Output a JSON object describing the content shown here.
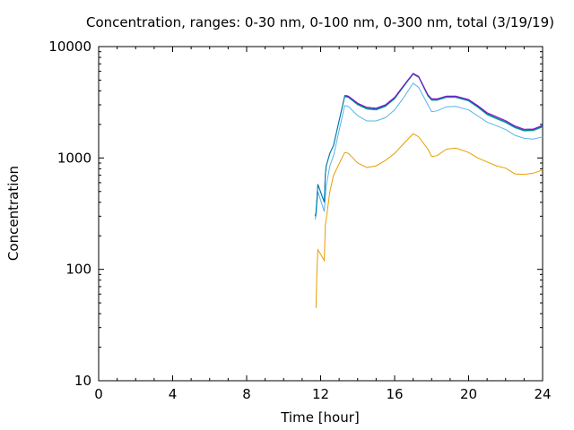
{
  "chart_data": {
    "type": "line",
    "title": "Concentration, ranges: 0-30 nm, 0-100 nm, 0-300 nm, total (3/19/19)",
    "xlabel": "Time [hour]",
    "ylabel": "Concentration",
    "xlim": [
      0,
      24
    ],
    "ylim": [
      10,
      10000
    ],
    "y_scale": "log",
    "grid": false,
    "legend": "none",
    "x_ticks": [
      0,
      4,
      8,
      12,
      16,
      20,
      24
    ],
    "x_tick_labels": [
      "0",
      "4",
      "8",
      "12",
      "16",
      "20",
      "24"
    ],
    "y_ticks": [
      10,
      100,
      1000,
      10000
    ],
    "y_tick_labels": [
      "10",
      "100",
      "1000",
      "10000"
    ],
    "series": [
      {
        "color": "#E69F00",
        "x": [
          11.75,
          11.8,
          11.85,
          12.2,
          12.25,
          12.3,
          12.5,
          12.7,
          13.3,
          13.5,
          14.0,
          14.5,
          15.0,
          15.5,
          16.0,
          16.5,
          17.0,
          17.3,
          17.8,
          18.0,
          18.3,
          18.8,
          19.3,
          20.0,
          20.5,
          21.0,
          21.5,
          22.0,
          22.5,
          23.0,
          23.5,
          24.0
        ],
        "y": [
          45,
          100,
          150,
          120,
          250,
          280,
          500,
          700,
          1120,
          1100,
          900,
          820,
          850,
          950,
          1100,
          1350,
          1650,
          1550,
          1200,
          1030,
          1050,
          1200,
          1230,
          1120,
          1000,
          920,
          850,
          810,
          720,
          710,
          730,
          780
        ]
      },
      {
        "color": "#56B4E9",
        "x": [
          11.7,
          11.75,
          11.8,
          11.85,
          12.2,
          12.25,
          12.3,
          12.5,
          12.7,
          13.3,
          13.5,
          14.0,
          14.5,
          15.0,
          15.5,
          16.0,
          16.5,
          17.0,
          17.3,
          17.8,
          18.0,
          18.3,
          18.8,
          19.3,
          20.0,
          20.5,
          21.0,
          21.5,
          22.0,
          22.5,
          23.0,
          23.5,
          24.0
        ],
        "y": [
          280,
          300,
          400,
          500,
          330,
          450,
          560,
          850,
          1050,
          2950,
          2900,
          2400,
          2150,
          2150,
          2300,
          2700,
          3500,
          4700,
          4300,
          3000,
          2600,
          2650,
          2880,
          2900,
          2700,
          2380,
          2100,
          1950,
          1800,
          1600,
          1500,
          1480,
          1550
        ]
      },
      {
        "color": "#009E73",
        "x": [
          11.7,
          11.75,
          11.8,
          11.85,
          12.2,
          12.25,
          12.3,
          12.5,
          12.7,
          13.3,
          13.5,
          14.0,
          14.5,
          15.0,
          15.5,
          16.0,
          16.5,
          17.0,
          17.3,
          17.8,
          18.0,
          18.3,
          18.8,
          19.3,
          20.0,
          20.5,
          21.0,
          21.5,
          22.0,
          22.5,
          23.0,
          23.5,
          24.0
        ],
        "y": [
          300,
          320,
          430,
          580,
          400,
          700,
          850,
          1100,
          1300,
          3550,
          3500,
          3000,
          2750,
          2700,
          2900,
          3400,
          4400,
          5650,
          5300,
          3600,
          3300,
          3300,
          3500,
          3500,
          3250,
          2850,
          2450,
          2250,
          2080,
          1870,
          1750,
          1760,
          1900
        ]
      },
      {
        "color": "#0072B2",
        "x": [
          11.7,
          11.75,
          11.8,
          11.85,
          12.2,
          12.25,
          12.3,
          12.5,
          12.7,
          13.3,
          13.5,
          14.0,
          14.5,
          15.0,
          15.5,
          16.0,
          16.5,
          17.0,
          17.3,
          17.8,
          18.0,
          18.3,
          18.8,
          19.3,
          20.0,
          20.5,
          21.0,
          21.5,
          22.0,
          22.5,
          23.0,
          23.5,
          24.0
        ],
        "y": [
          300,
          320,
          430,
          580,
          400,
          700,
          850,
          1100,
          1300,
          3600,
          3550,
          3050,
          2800,
          2750,
          2950,
          3450,
          4450,
          5700,
          5350,
          3650,
          3350,
          3350,
          3550,
          3550,
          3300,
          2900,
          2500,
          2300,
          2120,
          1900,
          1780,
          1790,
          1930
        ]
      },
      {
        "color": "#9400D3",
        "x": [
          13.3,
          13.5,
          14.0,
          14.5,
          15.0,
          15.5,
          16.0,
          16.5,
          17.0,
          17.3,
          17.8,
          18.0,
          18.3,
          18.8,
          19.3,
          20.0,
          20.5,
          21.0,
          21.5,
          22.0,
          22.5,
          23.0,
          23.5,
          24.0
        ],
        "y": [
          3650,
          3600,
          3100,
          2850,
          2800,
          3000,
          3500,
          4500,
          5750,
          5400,
          3700,
          3400,
          3400,
          3600,
          3600,
          3350,
          2950,
          2550,
          2350,
          2160,
          1940,
          1810,
          1820,
          1960
        ]
      }
    ]
  }
}
